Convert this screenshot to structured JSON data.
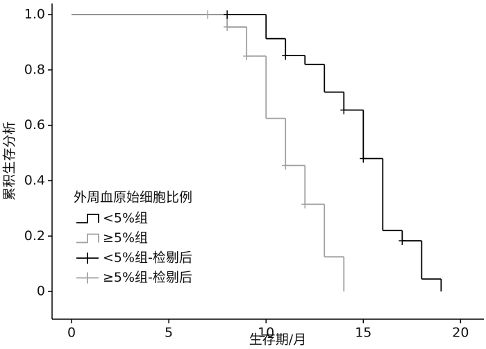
{
  "chart_data": {
    "type": "step",
    "xlabel": "生存期/月",
    "ylabel": "累积生存分析",
    "xlim": [
      -1,
      21.2
    ],
    "ylim": [
      -0.1,
      1.04
    ],
    "xticks": [
      0,
      5,
      10,
      15,
      20
    ],
    "yticks": [
      0,
      0.2,
      0.4,
      0.6,
      0.8,
      {
        "value": 1,
        "label": "1.0"
      }
    ],
    "legend_title": "外周血原始细胞比例",
    "legend": "left",
    "series": [
      {
        "name": "<5%组",
        "color": "#000000",
        "drawstyle": "steps-post",
        "x": [
          0,
          10,
          11,
          12,
          13,
          14,
          15,
          16,
          17,
          18,
          19
        ],
        "values": [
          1,
          0.913,
          0.852,
          0.82,
          0.72,
          0.655,
          0.48,
          0.22,
          0.183,
          0.045,
          0
        ]
      },
      {
        "name": "≥5%组",
        "color": "#a0a0a0",
        "drawstyle": "steps-post",
        "x": [
          0,
          8,
          9,
          10,
          11,
          12,
          13,
          14
        ],
        "values": [
          1,
          0.955,
          0.85,
          0.625,
          0.455,
          0.315,
          0.125,
          0
        ]
      },
      {
        "name": "<5%组-检剔后",
        "color": "#000000",
        "marker": "+",
        "x": [
          8,
          11,
          14,
          15,
          17
        ],
        "values": [
          1,
          0.852,
          0.655,
          0.48,
          0.183
        ]
      },
      {
        "name": "≥5%组-检剔后",
        "color": "#a0a0a0",
        "marker": "+",
        "x": [
          7,
          8,
          9,
          11,
          12
        ],
        "values": [
          1,
          0.955,
          0.85,
          0.455,
          0.315
        ]
      }
    ]
  }
}
